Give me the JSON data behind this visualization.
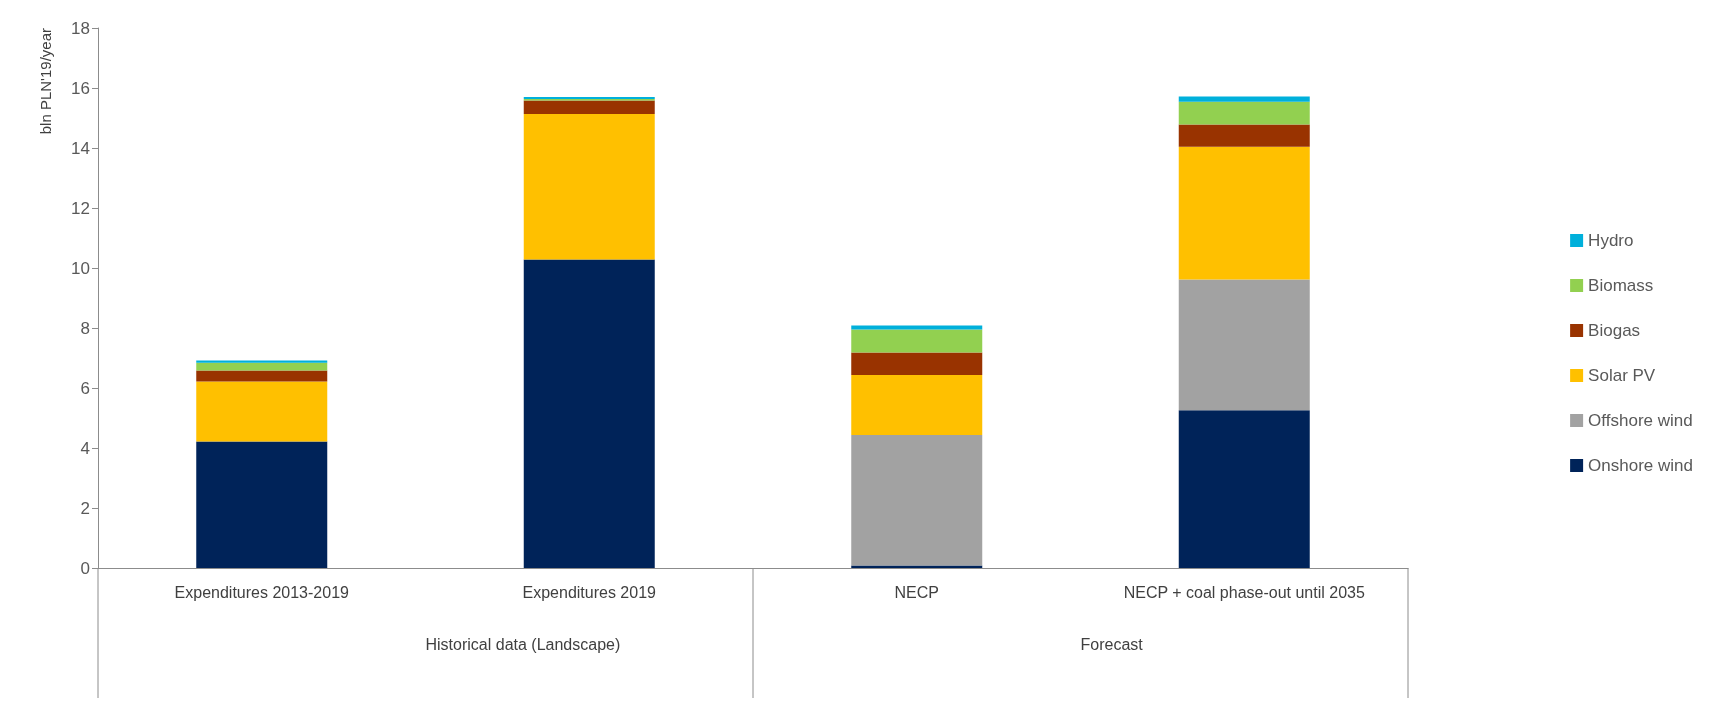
{
  "chart_data": {
    "type": "bar",
    "stacked": true,
    "ylabel": "bln PLN'19/year",
    "categories": [
      "Expenditures 2013-2019",
      "Expenditures 2019",
      "NECP",
      "NECP + coal phase-out until 2035"
    ],
    "series": [
      {
        "name": "Onshore wind",
        "color": "#002359",
        "values": [
          4.22,
          10.28,
          0.08,
          5.26
        ]
      },
      {
        "name": "Offshore wind",
        "color": "#a2a2a2",
        "values": [
          0,
          0,
          4.35,
          4.36
        ]
      },
      {
        "name": "Solar PV",
        "color": "#ffc000",
        "values": [
          2.0,
          4.85,
          2.0,
          4.42
        ]
      },
      {
        "name": "Biogas",
        "color": "#993300",
        "values": [
          0.36,
          0.45,
          0.75,
          0.74
        ]
      },
      {
        "name": "Biomass",
        "color": "#92d050",
        "values": [
          0.26,
          0.05,
          0.77,
          0.76
        ]
      },
      {
        "name": "Hydro",
        "color": "#00b0db",
        "values": [
          0.08,
          0.07,
          0.13,
          0.18
        ]
      }
    ],
    "ylim": [
      0,
      18
    ],
    "yticks": [
      0,
      2,
      4,
      6,
      8,
      10,
      12,
      14,
      16,
      18
    ],
    "grid": false,
    "legend": "right",
    "annotations": [
      "Historical data (Landscape)",
      "Forecast"
    ]
  }
}
